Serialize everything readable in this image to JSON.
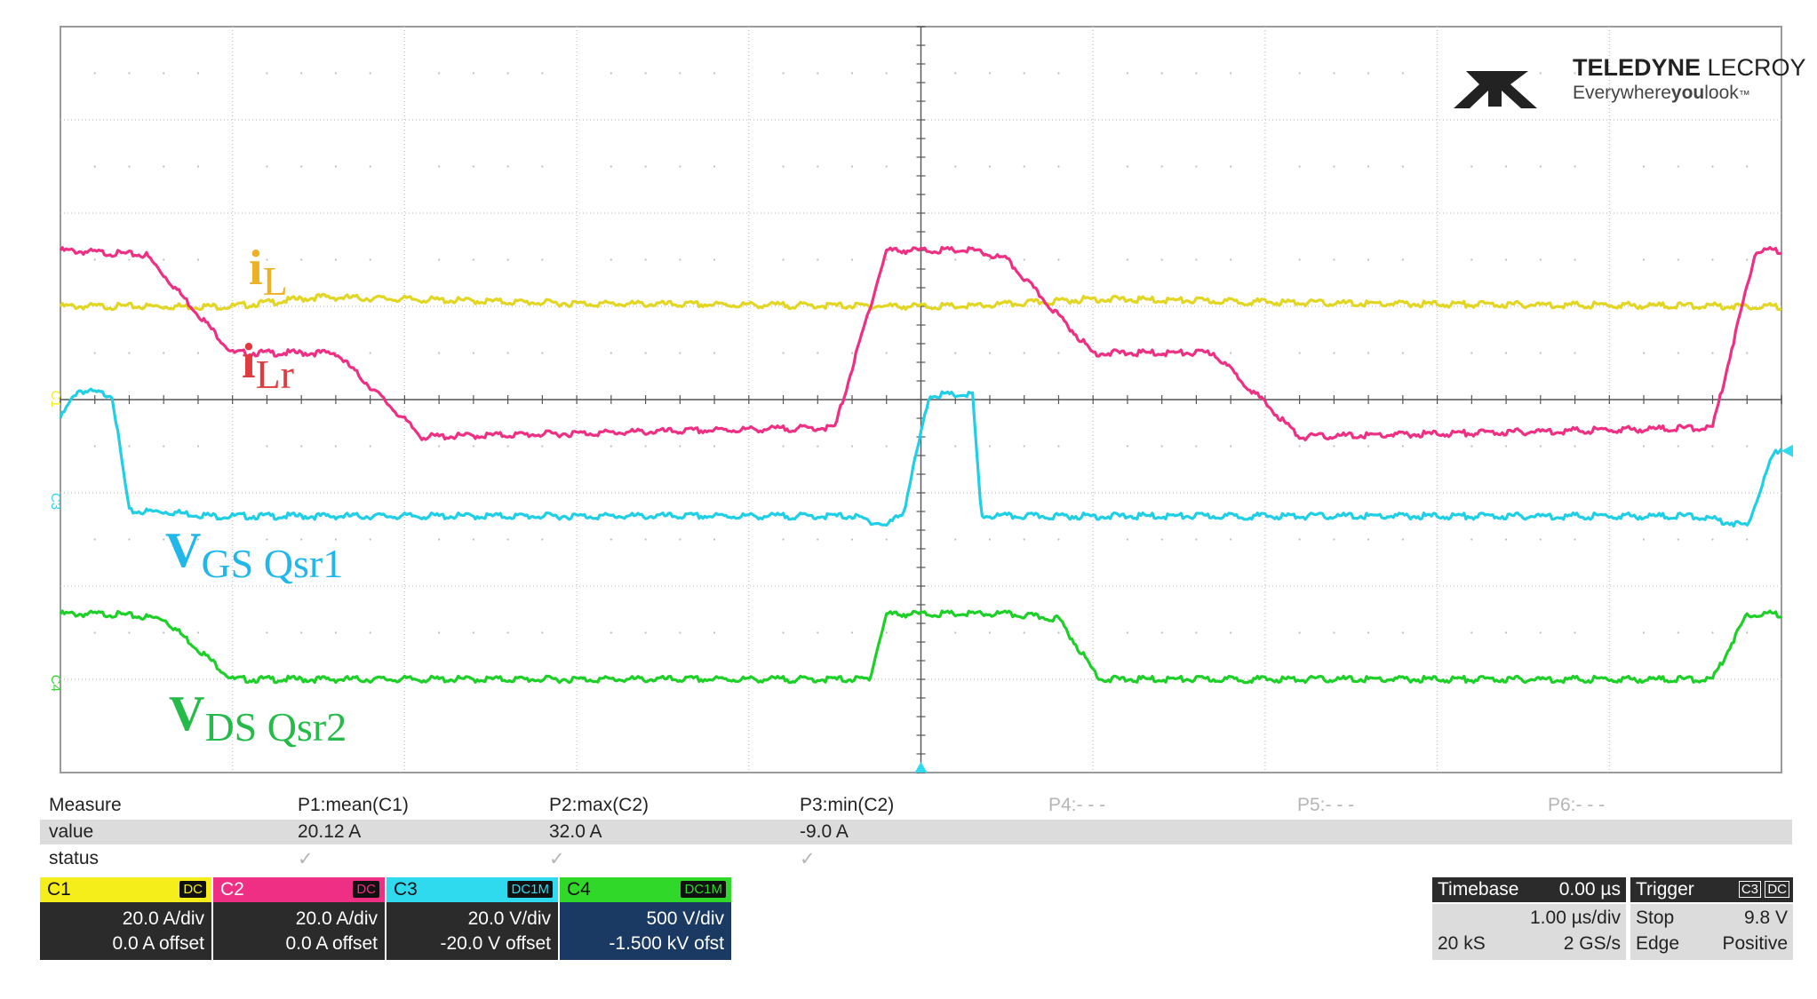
{
  "chart_data": {
    "type": "line",
    "title": "",
    "xlabel": "",
    "ylabel": "",
    "x_divisions": 10,
    "y_divisions": 8,
    "grid": true,
    "xlim": [
      -5,
      5
    ],
    "ylim": [
      -4,
      4
    ],
    "series": [
      {
        "name": "iL",
        "color": "#e2d623",
        "points": [
          [
            -5,
            1.0
          ],
          [
            -4.0,
            1.0
          ],
          [
            -3.5,
            1.1
          ],
          [
            -2.0,
            1.03
          ],
          [
            0,
            1.0
          ],
          [
            0.3,
            1.0
          ],
          [
            1.0,
            1.08
          ],
          [
            2.5,
            1.03
          ],
          [
            5,
            1.0
          ]
        ]
      },
      {
        "name": "iLr",
        "color": "#ee2f84",
        "points": [
          [
            -5,
            1.6
          ],
          [
            -4.5,
            1.55
          ],
          [
            -4.0,
            0.5
          ],
          [
            -3.4,
            0.5
          ],
          [
            -2.9,
            -0.4
          ],
          [
            -0.5,
            -0.3
          ],
          [
            -0.2,
            1.6
          ],
          [
            0.3,
            1.6
          ],
          [
            0.5,
            1.5
          ],
          [
            1.0,
            0.5
          ],
          [
            1.7,
            0.5
          ],
          [
            2.2,
            -0.4
          ],
          [
            4.6,
            -0.3
          ],
          [
            4.85,
            1.6
          ],
          [
            5,
            1.6
          ]
        ]
      },
      {
        "name": "VGS Qsr1",
        "color": "#1fcfe6",
        "points": [
          [
            -5,
            -0.2
          ],
          [
            -4.9,
            0.1
          ],
          [
            -4.7,
            0.05
          ],
          [
            -4.6,
            -1.2
          ],
          [
            -4.4,
            -1.2
          ],
          [
            -4.1,
            -1.25
          ],
          [
            -0.4,
            -1.25
          ],
          [
            -0.2,
            -1.35
          ],
          [
            -0.1,
            -1.2
          ],
          [
            0.05,
            0.05
          ],
          [
            0.3,
            0.05
          ],
          [
            0.35,
            -1.25
          ],
          [
            4.5,
            -1.25
          ],
          [
            4.8,
            -1.35
          ],
          [
            4.95,
            -0.6
          ],
          [
            5,
            -0.5
          ]
        ]
      },
      {
        "name": "VDS Qsr2",
        "color": "#1cd027",
        "points": [
          [
            -5,
            -2.3
          ],
          [
            -4.7,
            -2.3
          ],
          [
            -4.4,
            -2.35
          ],
          [
            -4.0,
            -3.0
          ],
          [
            -0.3,
            -3.0
          ],
          [
            -0.2,
            -2.3
          ],
          [
            0.5,
            -2.3
          ],
          [
            0.8,
            -2.35
          ],
          [
            1.0,
            -2.9
          ],
          [
            1.05,
            -3.0
          ],
          [
            4.6,
            -3.0
          ],
          [
            4.8,
            -2.3
          ],
          [
            5,
            -2.3
          ]
        ]
      }
    ]
  },
  "overlay_labels": [
    {
      "main": "i",
      "sub": "L",
      "color": "#eeb024"
    },
    {
      "main": "i",
      "sub": "Lr",
      "color": "#df3a3f"
    },
    {
      "main": "V",
      "sub": "GS Qsr1",
      "color": "#21b7ea"
    },
    {
      "main": "V",
      "sub": "DS Qsr2",
      "color": "#24bb49"
    }
  ],
  "channel_markers": [
    "C1",
    "C3",
    "C4"
  ],
  "logo": {
    "brand_bold": "TELEDYNE",
    "brand_light": " LECROY",
    "tag_a": "Everywhere",
    "tag_b": "you",
    "tag_c": "look",
    "tag_tm": "™"
  },
  "measure": {
    "row_labels": [
      "Measure",
      "value",
      "status"
    ],
    "columns": [
      {
        "name": "P1:mean(C1)",
        "value": "20.12 A",
        "status": "✓"
      },
      {
        "name": "P2:max(C2)",
        "value": "32.0 A",
        "status": "✓"
      },
      {
        "name": "P3:min(C2)",
        "value": "-9.0 A",
        "status": "✓"
      },
      {
        "name": "P4:- - -",
        "value": "",
        "status": ""
      },
      {
        "name": "P5:- - -",
        "value": "",
        "status": ""
      },
      {
        "name": "P6:- - -",
        "value": "",
        "status": ""
      }
    ]
  },
  "channels": [
    {
      "name": "C1",
      "coupling": "DC",
      "vdiv": "20.0 A/div",
      "offset": "0.0 A offset",
      "color": "#f5ee1a"
    },
    {
      "name": "C2",
      "coupling": "DC",
      "vdiv": "20.0 A/div",
      "offset": "0.0 A offset",
      "color": "#ee2f84"
    },
    {
      "name": "C3",
      "coupling": "DC1M",
      "vdiv": "20.0 V/div",
      "offset": "-20.0 V offset",
      "color": "#2fd9ee"
    },
    {
      "name": "C4",
      "coupling": "DC1M",
      "vdiv": "500 V/div",
      "offset": "-1.500 kV ofst",
      "color": "#30d82a"
    }
  ],
  "timebase": {
    "title": "Timebase",
    "delay": "0.00 µs",
    "per_div": "1.00 µs/div",
    "samples": "20 kS",
    "rate": "2 GS/s"
  },
  "trigger": {
    "title": "Trigger",
    "source": "C3",
    "coupling": "DC",
    "mode": "Stop",
    "level": "9.8 V",
    "type": "Edge",
    "slope": "Positive"
  }
}
